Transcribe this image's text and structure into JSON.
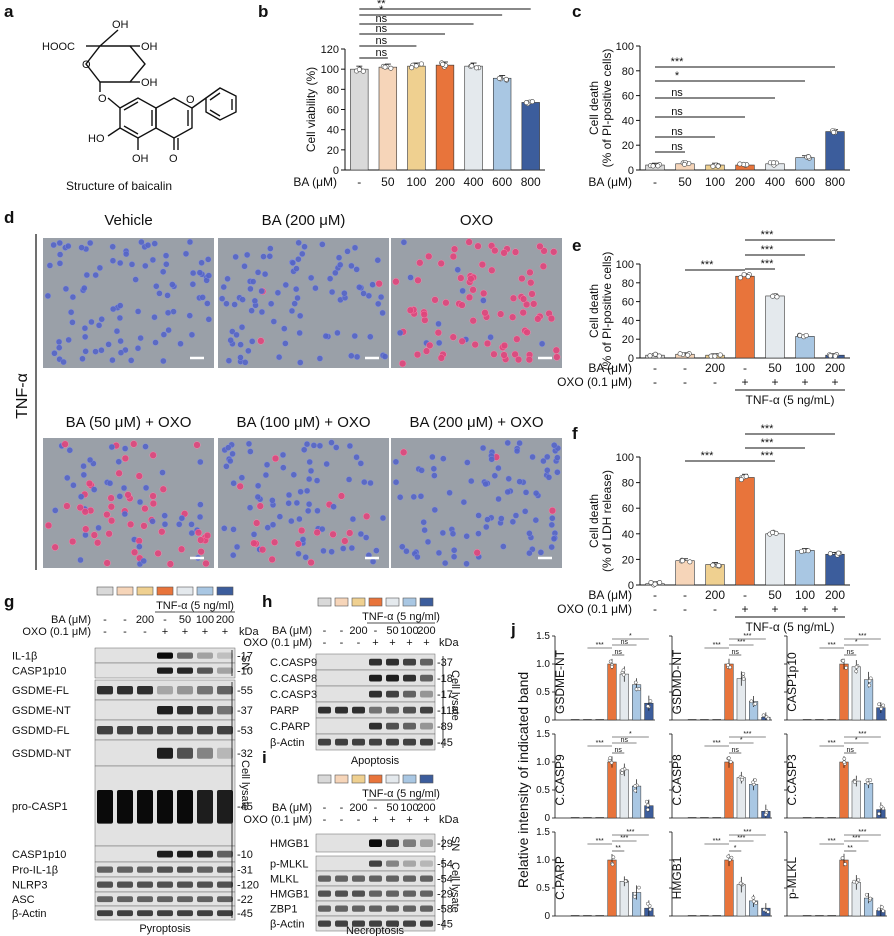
{
  "panel_letters": {
    "a": "a",
    "b": "b",
    "c": "c",
    "d": "d",
    "e": "e",
    "f": "f",
    "g": "g",
    "h": "h",
    "i": "i",
    "j": "j"
  },
  "panel_a": {
    "caption": "Structure of baicalin",
    "atoms": {
      "cooh": "HOOC",
      "oh1": "OH",
      "oh2": "OH",
      "oh3": "OH",
      "oh4": "HO",
      "oh5": "OH",
      "o_ring": "O",
      "o_link": "O",
      "o_flav": "O",
      "o_keto": "O"
    }
  },
  "colors": {
    "ctrl": "#d9d9d9",
    "c50": "#f6d5b9",
    "c100": "#efd090",
    "c200": "#e8743b",
    "c400": "#e4e9ed",
    "c600": "#a9c7e3",
    "c800": "#3c5d9c",
    "black": "#111111"
  },
  "chart_data": [
    {
      "id": "b",
      "type": "bar",
      "ylabel": "Cell viability (%)",
      "ylim": [
        0,
        120
      ],
      "yticks": [
        0,
        20,
        40,
        60,
        80,
        100,
        120
      ],
      "xlabel": "BA (μM)",
      "categories": [
        "-",
        "50",
        "100",
        "200",
        "400",
        "600",
        "800"
      ],
      "values": [
        100,
        102,
        103,
        104,
        103,
        91,
        67
      ],
      "colors": [
        "#d9d9d9",
        "#f6d5b9",
        "#efd090",
        "#e8743b",
        "#e4e9ed",
        "#a9c7e3",
        "#3c5d9c"
      ],
      "significance": [
        {
          "from": 0,
          "to": 1,
          "label": "ns"
        },
        {
          "from": 0,
          "to": 2,
          "label": "ns"
        },
        {
          "from": 0,
          "to": 3,
          "label": "ns"
        },
        {
          "from": 0,
          "to": 4,
          "label": "ns"
        },
        {
          "from": 0,
          "to": 5,
          "label": "*"
        },
        {
          "from": 0,
          "to": 6,
          "label": "**"
        }
      ]
    },
    {
      "id": "c",
      "type": "bar",
      "ylabel": "Cell death",
      "ylabel2": "(% of PI-positive cells)",
      "ylim": [
        0,
        100
      ],
      "yticks": [
        0,
        20,
        40,
        60,
        80,
        100
      ],
      "xlabel": "BA (μM)",
      "categories": [
        "-",
        "50",
        "100",
        "200",
        "400",
        "600",
        "800"
      ],
      "values": [
        4,
        5,
        4,
        4,
        5,
        10,
        31
      ],
      "colors": [
        "#d9d9d9",
        "#f6d5b9",
        "#efd090",
        "#e8743b",
        "#e4e9ed",
        "#a9c7e3",
        "#3c5d9c"
      ],
      "significance": [
        {
          "from": 0,
          "to": 1,
          "label": "ns"
        },
        {
          "from": 0,
          "to": 2,
          "label": "ns"
        },
        {
          "from": 0,
          "to": 3,
          "label": "ns"
        },
        {
          "from": 0,
          "to": 4,
          "label": "ns"
        },
        {
          "from": 0,
          "to": 5,
          "label": "*"
        },
        {
          "from": 0,
          "to": 6,
          "label": "***"
        }
      ]
    },
    {
      "id": "e",
      "type": "bar",
      "ylabel": "Cell death",
      "ylabel2": "(% of PI-positive cells)",
      "ylim": [
        0,
        100
      ],
      "yticks": [
        0,
        20,
        40,
        60,
        80,
        100
      ],
      "rows": [
        {
          "label": "BA (μM)",
          "values": [
            "-",
            "-",
            "200",
            "-",
            "50",
            "100",
            "200"
          ]
        },
        {
          "label": "OXO (0.1 μM)",
          "values": [
            "-",
            "-",
            "-",
            "+",
            "+",
            "+",
            "+"
          ]
        }
      ],
      "treatment": "TNF-α (5 ng/mL)",
      "values": [
        3,
        4,
        3,
        87,
        66,
        23,
        3
      ],
      "colors": [
        "#d9d9d9",
        "#f6d5b9",
        "#efd090",
        "#e8743b",
        "#e4e9ed",
        "#a9c7e3",
        "#3c5d9c"
      ],
      "significance": [
        {
          "from": 1,
          "to": 3,
          "label": "***"
        },
        {
          "from": 3,
          "to": 4,
          "label": "***"
        },
        {
          "from": 3,
          "to": 5,
          "label": "***"
        },
        {
          "from": 3,
          "to": 6,
          "label": "***"
        }
      ]
    },
    {
      "id": "f",
      "type": "bar",
      "ylabel": "Cell death",
      "ylabel2": "(% of LDH release)",
      "ylim": [
        0,
        100
      ],
      "yticks": [
        0,
        20,
        40,
        60,
        80,
        100
      ],
      "rows": [
        {
          "label": "BA (μM)",
          "values": [
            "-",
            "-",
            "200",
            "-",
            "50",
            "100",
            "200"
          ]
        },
        {
          "label": "OXO (0.1 μM)",
          "values": [
            "-",
            "-",
            "-",
            "+",
            "+",
            "+",
            "+"
          ]
        }
      ],
      "treatment": "TNF-α (5 ng/mL)",
      "values": [
        1,
        19,
        16,
        84,
        40,
        27,
        24
      ],
      "colors": [
        "#d9d9d9",
        "#f6d5b9",
        "#efd090",
        "#e8743b",
        "#e4e9ed",
        "#a9c7e3",
        "#3c5d9c"
      ],
      "significance": [
        {
          "from": 1,
          "to": 3,
          "label": "***"
        },
        {
          "from": 3,
          "to": 4,
          "label": "***"
        },
        {
          "from": 3,
          "to": 5,
          "label": "***"
        },
        {
          "from": 3,
          "to": 6,
          "label": "***"
        }
      ]
    },
    {
      "id": "j",
      "type": "bar",
      "ylabel": "Relative intensity of indicated band",
      "ylim": [
        0,
        1.5
      ],
      "yticks": [
        "0",
        "0.5",
        "1.0",
        "1.5"
      ],
      "colors": [
        "#d9d9d9",
        "#f6d5b9",
        "#efd090",
        "#e8743b",
        "#e4e9ed",
        "#a9c7e3",
        "#3c5d9c"
      ],
      "subplots": [
        {
          "title": "GSDME-NT",
          "values": [
            0,
            0,
            0,
            1.0,
            0.82,
            0.63,
            0.3
          ],
          "sig": [
            "***",
            "ns",
            "ns",
            "*"
          ]
        },
        {
          "title": "GSDMD-NT",
          "values": [
            0,
            0,
            0,
            1.0,
            0.74,
            0.33,
            0.05
          ],
          "sig": [
            "***",
            "ns",
            "***",
            "***"
          ]
        },
        {
          "title": "CASP1p10",
          "values": [
            0,
            0,
            0,
            1.0,
            0.95,
            0.72,
            0.22
          ],
          "sig": [
            "***",
            "ns",
            "*",
            "***"
          ]
        },
        {
          "title": "C.CASP9",
          "values": [
            0,
            0,
            0,
            1.0,
            0.86,
            0.57,
            0.22
          ],
          "sig": [
            "***",
            "ns",
            "ns",
            "*"
          ]
        },
        {
          "title": "C.CASP8",
          "values": [
            0,
            0,
            0,
            1.0,
            0.72,
            0.6,
            0.12
          ],
          "sig": [
            "***",
            "ns",
            "*",
            "***"
          ]
        },
        {
          "title": "C.CASP3",
          "values": [
            0,
            0,
            0,
            1.0,
            0.66,
            0.62,
            0.15
          ],
          "sig": [
            "***",
            "ns",
            "*",
            "***"
          ]
        },
        {
          "title": "C.PARP",
          "values": [
            0,
            0,
            0,
            1.0,
            0.62,
            0.42,
            0.14
          ],
          "sig": [
            "***",
            "**",
            "***",
            "***"
          ]
        },
        {
          "title": "HMGB1",
          "values": [
            0,
            0,
            0,
            1.0,
            0.56,
            0.27,
            0.14
          ],
          "sig": [
            "***",
            "*",
            "***",
            "***"
          ]
        },
        {
          "title": "p-MLKL",
          "values": [
            0,
            0,
            0,
            1.0,
            0.6,
            0.32,
            0.1
          ],
          "sig": [
            "***",
            "**",
            "***",
            "***"
          ]
        }
      ]
    }
  ],
  "panel_d": {
    "row_label": "TNF-α",
    "titles": [
      "Vehicle",
      "BA (200 μM)",
      "OXO",
      "BA (50 μM) + OXO",
      "BA (100 μM) + OXO",
      "BA (200 μM) + OXO"
    ],
    "pi_fraction": [
      0.02,
      0.03,
      0.85,
      0.6,
      0.25,
      0.04
    ]
  },
  "blots": {
    "g": {
      "header": "TNF-α (5 ng/ml)",
      "ba_label": "BA (μM)",
      "oxo_label": "OXO (0.1 μM)",
      "ba": [
        "-",
        "-",
        "200",
        "-",
        "50",
        "100",
        "200"
      ],
      "oxo": [
        "-",
        "-",
        "-",
        "+",
        "+",
        "+",
        "+"
      ],
      "kda": "kDa",
      "sn_rows": [
        {
          "name": "IL-1β",
          "kda": "-17"
        },
        {
          "name": "CASP1p10",
          "kda": "-10"
        }
      ],
      "sn_label": "SN",
      "lysate_label": "Cell lysate",
      "caption": "Pyroptosis",
      "rows": [
        {
          "name": "GSDME-FL",
          "kda": "-55"
        },
        {
          "name": "GSDME-NT",
          "kda": "-37"
        },
        {
          "name": "GSDMD-FL",
          "kda": "-53"
        },
        {
          "name": "GSDMD-NT",
          "kda": "-32"
        },
        {
          "name": "pro-CASP1",
          "kda": "-45"
        },
        {
          "name": "CASP1p10",
          "kda": "-10"
        },
        {
          "name": "Pro-IL-1β",
          "kda": "-31"
        },
        {
          "name": "NLRP3",
          "kda": "-120"
        },
        {
          "name": "ASC",
          "kda": "-22"
        },
        {
          "name": "β-Actin",
          "kda": "-45"
        }
      ]
    },
    "h": {
      "header": "TNF-α (5 ng/ml)",
      "ba_label": "BA (μM)",
      "oxo_label": "OXO (0.1 μM)",
      "ba": [
        "-",
        "-",
        "200",
        "-",
        "50",
        "100",
        "200"
      ],
      "oxo": [
        "-",
        "-",
        "-",
        "+",
        "+",
        "+",
        "+"
      ],
      "kda": "kDa",
      "lysate_label": "Cell lysate",
      "caption": "Apoptosis",
      "rows": [
        {
          "name": "C.CASP9",
          "kda": "-37"
        },
        {
          "name": "C.CASP8",
          "kda": "-18"
        },
        {
          "name": "C.CASP3",
          "kda": "-17"
        },
        {
          "name": "PARP",
          "kda": "-116"
        },
        {
          "name": "C.PARP",
          "kda": "-89"
        },
        {
          "name": "β-Actin",
          "kda": "-45"
        }
      ]
    },
    "i": {
      "header": "TNF-α (5 ng/ml)",
      "ba_label": "BA (μM)",
      "oxo_label": "OXO (0.1 μM)",
      "ba": [
        "-",
        "-",
        "200",
        "-",
        "50",
        "100",
        "200"
      ],
      "oxo": [
        "-",
        "-",
        "-",
        "+",
        "+",
        "+",
        "+"
      ],
      "kda": "kDa",
      "sn_rows": [
        {
          "name": "HMGB1",
          "kda": "-29"
        }
      ],
      "sn_label": "SN",
      "lysate_label": "Cell lysate",
      "caption": "Necroptosis",
      "rows": [
        {
          "name": "p-MLKL",
          "kda": "-54"
        },
        {
          "name": "MLKL",
          "kda": "-54"
        },
        {
          "name": "HMGB1",
          "kda": "-29"
        },
        {
          "name": "ZBP1",
          "kda": "-58"
        },
        {
          "name": "β-Actin",
          "kda": "-45"
        }
      ]
    }
  }
}
